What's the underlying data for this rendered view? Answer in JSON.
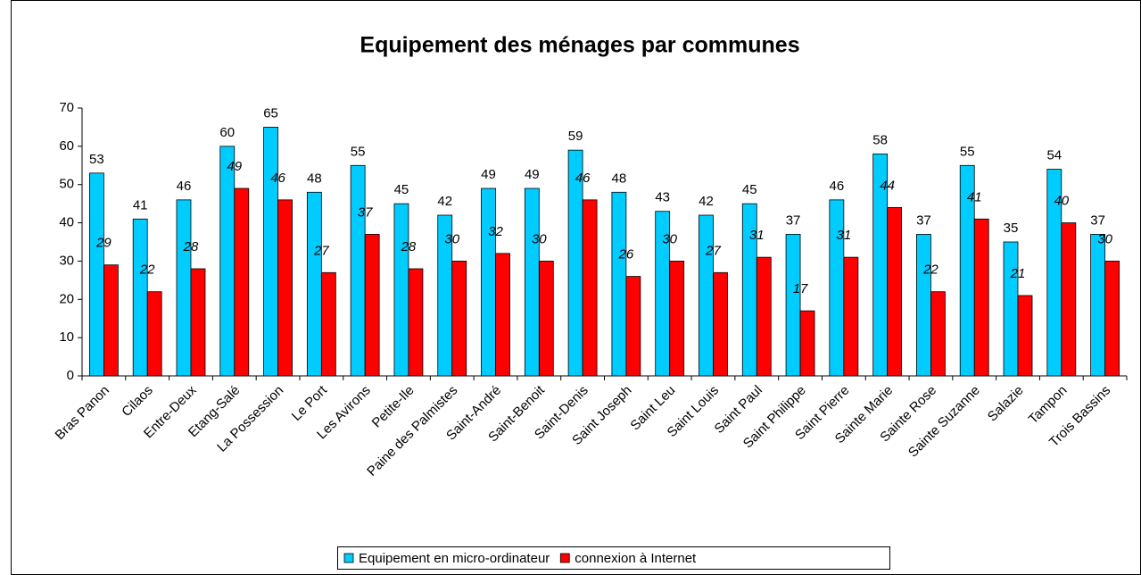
{
  "chart_data": {
    "type": "bar",
    "title": "Equipement des ménages par communes",
    "categories": [
      "Bras Panon",
      "Cilaos",
      "Entre-Deux",
      "Etang-Salé",
      "La Possession",
      "Le Port",
      "Les Avirons",
      "Petite-Ile",
      "Paine des Palmistes",
      "Saint-André",
      "Saint-Benoit",
      "Saint-Denis",
      "Saint Joseph",
      "Saint Leu",
      "Saint Louis",
      "Saint Paul",
      "Saint Philippe",
      "Saint Pierre",
      "Sainte Marie",
      "Sainte Rose",
      "Sainte Suzanne",
      "Salazie",
      "Tampon",
      "Trois Bassins"
    ],
    "series": [
      {
        "name": "Equipement en micro-ordinateur",
        "color": "#00ccff",
        "values": [
          53,
          41,
          46,
          60,
          65,
          48,
          55,
          45,
          42,
          49,
          49,
          59,
          48,
          43,
          42,
          45,
          37,
          46,
          58,
          37,
          55,
          35,
          54,
          37
        ]
      },
      {
        "name": "connexion à Internet",
        "color": "#ff0000",
        "values": [
          29,
          22,
          28,
          49,
          46,
          27,
          37,
          28,
          30,
          32,
          30,
          46,
          26,
          30,
          27,
          31,
          17,
          31,
          44,
          22,
          41,
          21,
          40,
          30
        ]
      }
    ],
    "ylim": [
      0,
      70
    ],
    "yticks": [
      0,
      10,
      20,
      30,
      40,
      50,
      60,
      70
    ],
    "legend": "bottom"
  }
}
